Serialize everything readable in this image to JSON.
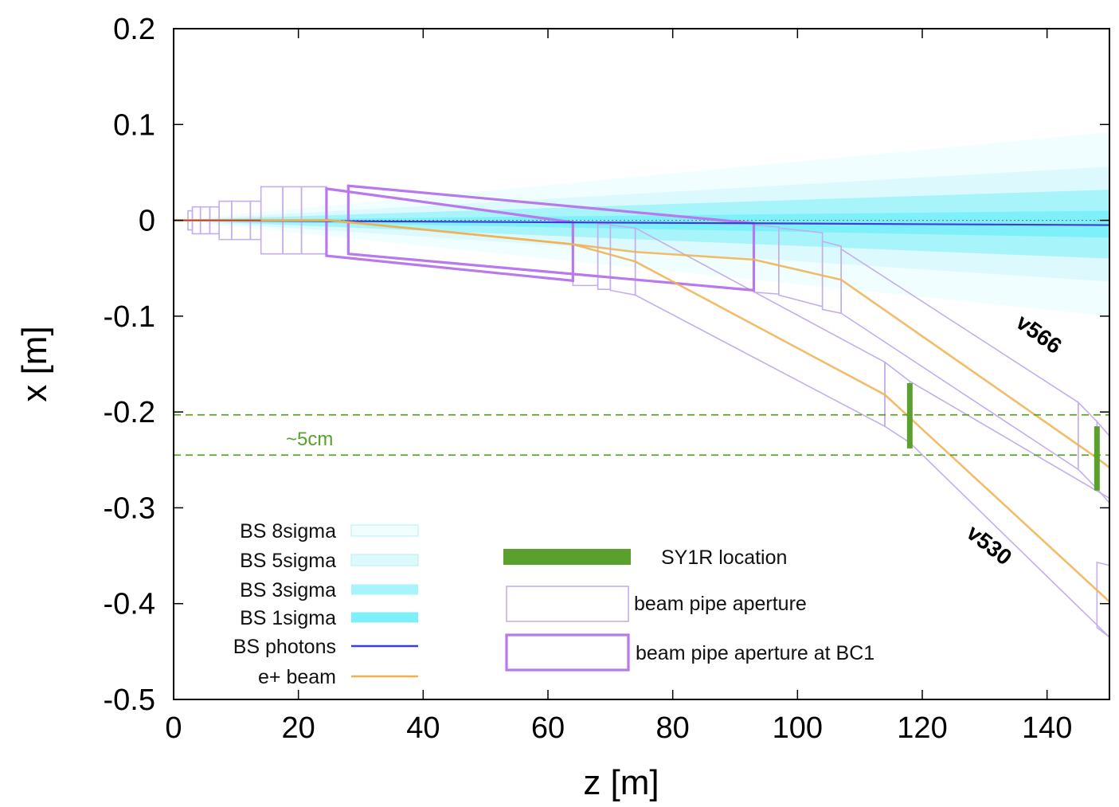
{
  "chart_data": {
    "type": "line",
    "title": "",
    "xlabel": "z [m]",
    "ylabel": "x [m]",
    "xlim": [
      0,
      150
    ],
    "ylim": [
      -0.5,
      0.2
    ],
    "x_ticks": [
      "0",
      "20",
      "40",
      "60",
      "80",
      "100",
      "120",
      "140"
    ],
    "x_tick_values": [
      0,
      20,
      40,
      60,
      80,
      100,
      120,
      140
    ],
    "y_ticks": [
      "0.2",
      "0.1",
      "0",
      "-0.1",
      "-0.2",
      "-0.3",
      "-0.4",
      "-0.5"
    ],
    "y_tick_values": [
      0.2,
      0.1,
      0,
      -0.1,
      -0.2,
      -0.3,
      -0.4,
      -0.5
    ],
    "grid": false,
    "legend_position": "bottom-left",
    "legend": [
      {
        "label": "BS 8sigma",
        "style": "band",
        "color": "#f0feff"
      },
      {
        "label": "BS 5sigma",
        "style": "band",
        "color": "#dcfafd"
      },
      {
        "label": "BS 3sigma",
        "style": "band",
        "color": "#a8f4fb"
      },
      {
        "label": "BS 1sigma",
        "style": "band",
        "color": "#7ef0fa"
      },
      {
        "label": "BS photons",
        "style": "line",
        "color": "#3c3cd8"
      },
      {
        "label": "e+ beam",
        "style": "line",
        "color": "#f0b050"
      }
    ],
    "legend_right": [
      {
        "label": "SY1R location",
        "style": "bar",
        "color": "#5aa02c"
      },
      {
        "label": "beam pipe aperture",
        "style": "box-thin",
        "color": "#c4aeec"
      },
      {
        "label": "beam pipe aperture at BC1",
        "style": "box-thick",
        "color": "#b878ee"
      }
    ],
    "bands": [
      {
        "name": "BS 8sigma",
        "color": "#f0feff",
        "z": [
          0,
          150
        ],
        "half_width": [
          0,
          0.096
        ]
      },
      {
        "name": "BS 5sigma",
        "color": "#dcfafd",
        "z": [
          0,
          150
        ],
        "half_width": [
          0,
          0.06
        ]
      },
      {
        "name": "BS 3sigma",
        "color": "#a8f4fb",
        "z": [
          0,
          150
        ],
        "half_width": [
          0,
          0.036
        ]
      },
      {
        "name": "BS 1sigma",
        "color": "#7ef0fa",
        "z": [
          0,
          150
        ],
        "half_width": [
          0,
          0.014
        ]
      }
    ],
    "series": [
      {
        "name": "BS photons",
        "color": "#3c3cd8",
        "z": [
          0,
          150
        ],
        "x": [
          0,
          -0.005
        ]
      },
      {
        "name": "e+ beam v566",
        "color": "#f0b050",
        "z": [
          0,
          25,
          64,
          74,
          93,
          107,
          148,
          150
        ],
        "x": [
          0,
          0,
          -0.025,
          -0.033,
          -0.041,
          -0.062,
          -0.248,
          -0.258
        ]
      },
      {
        "name": "e+ beam v530",
        "color": "#f0b050",
        "z": [
          0,
          25,
          64,
          74,
          114,
          150
        ],
        "x": [
          0,
          0,
          -0.025,
          -0.043,
          -0.182,
          -0.398
        ]
      }
    ],
    "sy1r_locations": [
      {
        "z": 118,
        "x_top": -0.17,
        "x_bottom": -0.238
      },
      {
        "z": 148,
        "x_top": -0.215,
        "x_bottom": -0.282
      }
    ],
    "dashed_levels": [
      -0.203,
      -0.245
    ],
    "annotations": [
      {
        "text": "~5cm",
        "z": 18,
        "x": -0.228,
        "color": "#5aa02c"
      },
      {
        "text": "v566",
        "z": 138,
        "x": -0.125,
        "color": "#000000"
      },
      {
        "text": "v530",
        "z": 130,
        "x": -0.345,
        "color": "#000000"
      }
    ],
    "apertures": [
      {
        "z": [
          2.3,
          3
        ],
        "x_top": [
          0.01,
          0.01
        ],
        "x_bottom": [
          -0.01,
          -0.01
        ]
      },
      {
        "z": [
          3,
          4.3
        ],
        "x_top": [
          0.014,
          0.014
        ],
        "x_bottom": [
          -0.014,
          -0.014
        ]
      },
      {
        "z": [
          4.3,
          5.8
        ],
        "x_top": [
          0.014,
          0.014
        ],
        "x_bottom": [
          -0.014,
          -0.014
        ]
      },
      {
        "z": [
          5.8,
          7.3
        ],
        "x_top": [
          0.014,
          0.014
        ],
        "x_bottom": [
          -0.014,
          -0.014
        ]
      },
      {
        "z": [
          7.3,
          9.3
        ],
        "x_top": [
          0.02,
          0.02
        ],
        "x_bottom": [
          -0.02,
          -0.02
        ]
      },
      {
        "z": [
          9.3,
          12.3
        ],
        "x_top": [
          0.02,
          0.02
        ],
        "x_bottom": [
          -0.02,
          -0.02
        ]
      },
      {
        "z": [
          12.3,
          14
        ],
        "x_top": [
          0.02,
          0.02
        ],
        "x_bottom": [
          -0.02,
          -0.02
        ]
      },
      {
        "z": [
          14,
          17.5
        ],
        "x_top": [
          0.035,
          0.035
        ],
        "x_bottom": [
          -0.035,
          -0.035
        ]
      },
      {
        "z": [
          17.5,
          20.5
        ],
        "x_top": [
          0.035,
          0.035
        ],
        "x_bottom": [
          -0.035,
          -0.035
        ]
      },
      {
        "z": [
          20.5,
          24.5
        ],
        "x_top": [
          0.035,
          0.035
        ],
        "x_bottom": [
          -0.035,
          -0.035
        ]
      },
      {
        "z": [
          64,
          68
        ],
        "x_top": [
          -0.002,
          -0.002
        ],
        "x_bottom": [
          -0.068,
          -0.068
        ]
      },
      {
        "z": [
          68,
          70
        ],
        "x_top": [
          -0.004,
          -0.004
        ],
        "x_bottom": [
          -0.072,
          -0.072
        ]
      },
      {
        "z": [
          70,
          74
        ],
        "x_top": [
          -0.005,
          -0.008
        ],
        "x_bottom": [
          -0.073,
          -0.078
        ]
      },
      {
        "z": [
          74,
          114
        ],
        "x_top": [
          -0.008,
          -0.148
        ],
        "x_bottom": [
          -0.078,
          -0.215
        ]
      },
      {
        "z": [
          114,
          118
        ],
        "x_top": [
          -0.148,
          -0.168
        ],
        "x_bottom": [
          -0.215,
          -0.232
        ]
      },
      {
        "z": [
          118,
          150
        ],
        "x_top": [
          -0.168,
          -0.29
        ],
        "x_bottom": [
          -0.232,
          -0.435
        ]
      },
      {
        "z": [
          93,
          97
        ],
        "x_top": [
          -0.005,
          -0.007
        ],
        "x_bottom": [
          -0.075,
          -0.077
        ]
      },
      {
        "z": [
          97,
          104
        ],
        "x_top": [
          -0.008,
          -0.013
        ],
        "x_bottom": [
          -0.078,
          -0.09
        ]
      },
      {
        "z": [
          104,
          107
        ],
        "x_top": [
          -0.022,
          -0.027
        ],
        "x_bottom": [
          -0.093,
          -0.097
        ]
      },
      {
        "z": [
          107,
          145
        ],
        "x_top": [
          -0.03,
          -0.19
        ],
        "x_bottom": [
          -0.097,
          -0.26
        ]
      },
      {
        "z": [
          145,
          148
        ],
        "x_top": [
          -0.19,
          -0.21
        ],
        "x_bottom": [
          -0.26,
          -0.28
        ]
      },
      {
        "z": [
          148,
          150
        ],
        "x_top": [
          -0.21,
          -0.225
        ],
        "x_bottom": [
          -0.28,
          -0.295
        ]
      },
      {
        "z": [
          148,
          150
        ],
        "x_top": [
          -0.357,
          -0.36
        ],
        "x_bottom": [
          -0.425,
          -0.435
        ]
      }
    ],
    "bc1_apertures": [
      {
        "z": [
          24.5,
          64
        ],
        "x_top": [
          0.033,
          -0.002
        ],
        "x_bottom": [
          -0.037,
          -0.063
        ]
      },
      {
        "z": [
          28,
          93
        ],
        "x_top": [
          0.036,
          -0.003
        ],
        "x_bottom": [
          -0.035,
          -0.073
        ]
      }
    ]
  }
}
